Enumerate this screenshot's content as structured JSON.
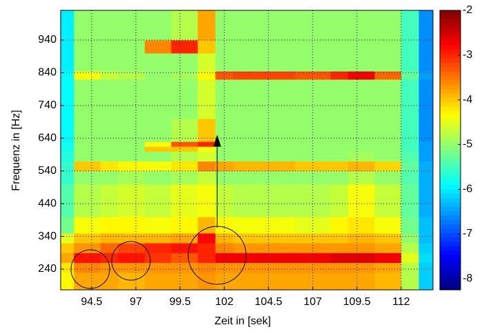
{
  "chart_data": {
    "type": "heatmap",
    "xlabel": "Zeit in [sek]",
    "ylabel": "Frequenz in [Hz]",
    "colormap": "jet",
    "x_edges": [
      92.75,
      93.5,
      95,
      96,
      97.5,
      99,
      100.5,
      101.5,
      102.5,
      104,
      106,
      108,
      109,
      110.5,
      112,
      113,
      113.8
    ],
    "y_edges": [
      176.7,
      230,
      260,
      290,
      320,
      350,
      400,
      500,
      540,
      570,
      600,
      615,
      630,
      700,
      820,
      845,
      900,
      940,
      1030.7
    ],
    "z": [
      [
        -4.3,
        -3.8,
        -3.8,
        -3.9,
        -3.8,
        -3.8,
        -3.7,
        -3.8,
        -3.8,
        -3.8,
        -3.8,
        -3.8,
        -3.8,
        -3.9,
        -4.8,
        -6.2
      ],
      [
        -4.2,
        -3.6,
        -3.7,
        -3.7,
        -3.7,
        -3.7,
        -3.6,
        -3.7,
        -3.7,
        -3.7,
        -3.7,
        -3.7,
        -3.7,
        -3.8,
        -4.8,
        -6.2
      ],
      [
        -3.8,
        -2.9,
        -3.0,
        -2.9,
        -3.1,
        -3.3,
        -3.0,
        -2.7,
        -2.7,
        -2.7,
        -2.7,
        -2.6,
        -2.6,
        -2.7,
        -4.5,
        -6.1
      ],
      [
        -4.0,
        -3.7,
        -3.4,
        -3.2,
        -3.0,
        -2.9,
        -3.0,
        -3.6,
        -3.7,
        -3.7,
        -3.7,
        -3.7,
        -3.7,
        -3.8,
        -4.8,
        -6.2
      ],
      [
        -4.5,
        -4.0,
        -3.9,
        -3.9,
        -3.9,
        -3.8,
        -2.8,
        -3.9,
        -4.0,
        -4.0,
        -4.0,
        -4.0,
        -3.9,
        -4.0,
        -5.0,
        -6.3
      ],
      [
        -5.2,
        -4.4,
        -4.3,
        -4.3,
        -4.4,
        -4.3,
        -3.9,
        -4.3,
        -4.4,
        -4.4,
        -4.5,
        -4.3,
        -4.2,
        -4.4,
        -5.2,
        -6.3
      ],
      [
        -5.4,
        -4.8,
        -4.7,
        -4.6,
        -4.7,
        -4.5,
        -4.4,
        -4.7,
        -4.8,
        -4.8,
        -4.8,
        -4.7,
        -4.4,
        -4.7,
        -5.3,
        -6.4
      ],
      [
        -5.6,
        -5.0,
        -5.0,
        -4.9,
        -5.0,
        -4.9,
        -4.7,
        -5.0,
        -5.0,
        -5.0,
        -5.0,
        -5.0,
        -4.8,
        -5.0,
        -5.4,
        -6.4
      ],
      [
        -5.6,
        -4.0,
        -4.2,
        -4.3,
        -4.4,
        -4.2,
        -3.6,
        -3.8,
        -3.9,
        -3.9,
        -4.0,
        -4.0,
        -3.9,
        -4.1,
        -5.3,
        -6.4
      ],
      [
        -5.7,
        -5.0,
        -5.0,
        -5.0,
        -5.0,
        -4.8,
        -4.6,
        -5.0,
        -5.0,
        -5.0,
        -5.0,
        -5.0,
        -4.9,
        -5.0,
        -5.4,
        -6.5
      ],
      [
        -5.8,
        -5.0,
        -5.0,
        -5.0,
        -4.0,
        -4.0,
        -4.4,
        -5.0,
        -5.0,
        -5.0,
        -5.0,
        -5.0,
        -5.0,
        -5.0,
        -5.5,
        -6.5
      ],
      [
        -5.8,
        -5.0,
        -5.0,
        -5.0,
        -4.4,
        -3.3,
        -3.0,
        -5.0,
        -5.0,
        -5.0,
        -5.0,
        -5.0,
        -5.0,
        -5.0,
        -5.5,
        -6.5
      ],
      [
        -5.9,
        -5.0,
        -5.0,
        -5.0,
        -5.0,
        -4.8,
        -4.0,
        -5.0,
        -5.0,
        -5.0,
        -5.0,
        -5.0,
        -5.0,
        -5.0,
        -5.5,
        -6.6
      ],
      [
        -5.9,
        -5.0,
        -5.0,
        -5.0,
        -5.0,
        -5.0,
        -4.6,
        -5.0,
        -5.0,
        -5.0,
        -5.0,
        -5.0,
        -5.0,
        -5.0,
        -5.5,
        -6.6
      ],
      [
        -5.9,
        -4.4,
        -4.7,
        -4.8,
        -5.0,
        -4.9,
        -4.3,
        -3.3,
        -3.2,
        -3.2,
        -3.3,
        -3.0,
        -2.7,
        -3.4,
        -5.3,
        -6.5
      ],
      [
        -6.0,
        -5.0,
        -5.0,
        -5.0,
        -5.0,
        -5.0,
        -4.6,
        -5.0,
        -5.0,
        -5.0,
        -5.0,
        -5.0,
        -5.0,
        -5.0,
        -5.5,
        -6.6
      ],
      [
        -6.0,
        -5.0,
        -5.0,
        -5.0,
        -3.6,
        -3.0,
        -4.0,
        -5.0,
        -5.0,
        -5.0,
        -5.0,
        -5.0,
        -5.0,
        -5.0,
        -5.5,
        -6.6
      ],
      [
        -6.0,
        -5.0,
        -5.0,
        -5.0,
        -5.0,
        -4.8,
        -3.8,
        -5.0,
        -5.0,
        -5.0,
        -5.0,
        -5.0,
        -5.0,
        -5.0,
        -5.5,
        -6.6
      ]
    ],
    "xlim": [
      92.75,
      113.8
    ],
    "xticks": [
      94.5,
      97,
      99.5,
      102,
      104.5,
      107,
      109.5,
      112
    ],
    "ylim": [
      176.7,
      1030.7
    ],
    "yticks": [
      240,
      340,
      440,
      540,
      640,
      740,
      840,
      940
    ],
    "clim": [
      -8.25,
      -2
    ],
    "cticks": [
      -2,
      -3,
      -4,
      -5,
      -6,
      -7,
      -8
    ],
    "grid": true
  }
}
